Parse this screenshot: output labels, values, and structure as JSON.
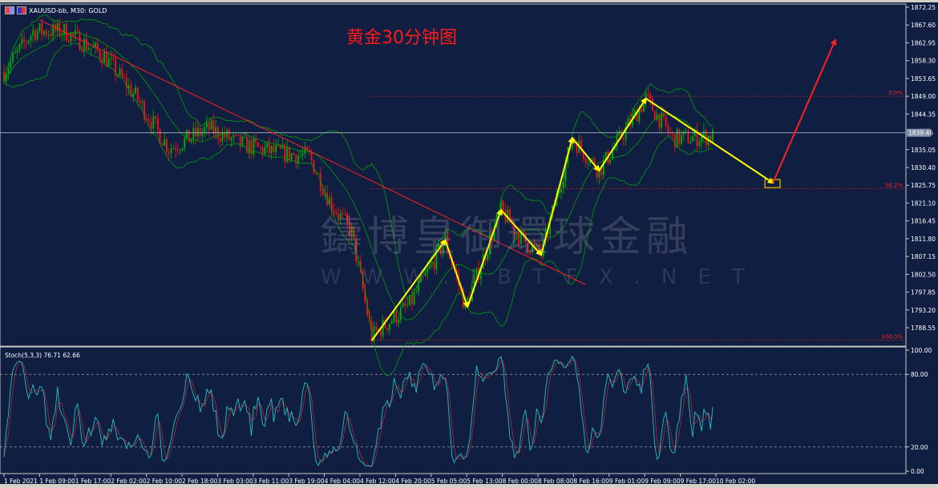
{
  "window": {
    "symbol_title": "XAUUSD-bb, M30:  GOLD"
  },
  "annotation_title": "黄金30分钟图",
  "watermark": {
    "chinese": "鑄博皇御環球金融",
    "url": "WWW.IBTFX.NET"
  },
  "indicator_label": "Stoch(5,3,3) 76.71 62.66",
  "current_price_label": "1839.46",
  "colors": {
    "background": "#101e42",
    "bull": "#00b000",
    "bear": "#ff1010",
    "bands": "#00a000",
    "zigzag": "#ffff00",
    "trend": "#ff2020",
    "stoch_main": "#20c0c0",
    "stoch_signal": "#ff3030"
  },
  "chart_data": [
    {
      "type": "candlestick",
      "timeframe": "M30",
      "ylim": [
        1785.0,
        1874.0
      ],
      "y_ticks": [
        "1872.25",
        "1867.60",
        "1862.95",
        "1858.30",
        "1853.65",
        "1849.00",
        "1844.35",
        "1835.05",
        "1830.40",
        "1825.75",
        "1821.10",
        "1816.45",
        "1811.80",
        "1807.15",
        "1802.50",
        "1797.85",
        "1793.20",
        "1788.55"
      ],
      "x_ticks": [
        "1 Feb 2021",
        "1 Feb 09:00",
        "1 Feb 17:00",
        "2 Feb 02:00",
        "2 Feb 10:00",
        "2 Feb 18:00",
        "3 Feb 03:00",
        "3 Feb 11:00",
        "3 Feb 19:00",
        "4 Feb 04:00",
        "4 Feb 12:00",
        "4 Feb 20:00",
        "5 Feb 05:00",
        "5 Feb 13:00",
        "8 Feb 00:00",
        "8 Feb 08:00",
        "8 Feb 16:00",
        "9 Feb 01:00",
        "9 Feb 09:00",
        "9 Feb 17:00",
        "10 Feb 02:00"
      ],
      "price_path_approx": [
        [
          2,
          1857
        ],
        [
          13,
          1866
        ],
        [
          27,
          1866
        ],
        [
          45,
          1859.5
        ],
        [
          59,
          1849
        ],
        [
          74,
          1835.4
        ],
        [
          92,
          1840.6
        ],
        [
          106,
          1836.5
        ],
        [
          121,
          1834.4
        ],
        [
          137,
          1833.3
        ],
        [
          146,
          1821.8
        ],
        [
          156,
          1813.4
        ],
        [
          165,
          1786.3
        ],
        [
          182,
          1794.6
        ],
        [
          198,
          1811.4
        ],
        [
          207,
          1794
        ],
        [
          223,
          1819.3
        ],
        [
          232,
          1812
        ],
        [
          241,
          1807.6
        ],
        [
          255,
          1838
        ],
        [
          267,
          1829.6
        ],
        [
          288,
          1848.4
        ],
        [
          300,
          1838
        ],
        [
          318,
          1838.5
        ]
      ],
      "current_price": 1839.46,
      "fibonacci": [
        {
          "label": "0.0%",
          "price": 1849.0
        },
        {
          "label": "38.2%",
          "price": 1824.9
        },
        {
          "label": "100.0%",
          "price": 1785.3
        }
      ],
      "trendline": [
        [
          16,
          1868.9
        ],
        [
          261,
          1799.8
        ]
      ],
      "zigzag_arrows": [
        [
          165,
          1785.2
        ],
        [
          198,
          1811.4
        ],
        [
          208,
          1794.0
        ],
        [
          223,
          1819.3
        ],
        [
          241,
          1807.6
        ],
        [
          255,
          1838.1
        ],
        [
          267,
          1829.6
        ],
        [
          288,
          1848.4
        ],
        [
          345,
          1826.4
        ]
      ],
      "forecast_arrow": [
        [
          345,
          1826.4
        ],
        [
          373,
          1863.7
        ]
      ],
      "bollinger": {
        "period": 20,
        "deviation": 2
      }
    },
    {
      "type": "line",
      "name": "Stoch(5,3,3)",
      "ylim": [
        0,
        100
      ],
      "y_ticks": [
        "100.00",
        "80.00",
        "20.00",
        "0.00"
      ],
      "levels": [
        80,
        20
      ],
      "last_values": {
        "main": 76.71,
        "signal": 62.66
      }
    }
  ]
}
